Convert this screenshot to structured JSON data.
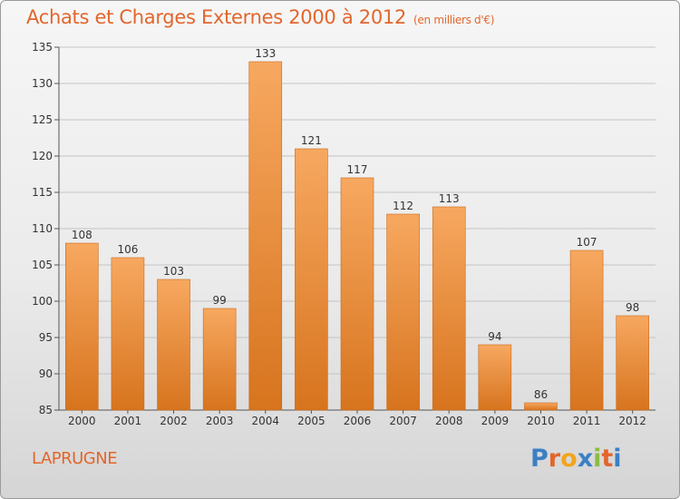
{
  "header": {
    "title": "Achats et Charges Externes 2000 à 2012",
    "unit": "(en milliers d'€)"
  },
  "footer": {
    "commune": "LAPRUGNE",
    "logo_letters": [
      "P",
      "r",
      "o",
      "x",
      "i",
      "t",
      "i"
    ],
    "logo_colors": [
      "#3b7fc4",
      "#e2662c",
      "#f2a51e",
      "#3b7fc4",
      "#8cbc3f",
      "#e2662c",
      "#3b7fc4"
    ]
  },
  "colors": {
    "accent": "#e2662c",
    "bar_top": "#f7a860",
    "bar_bottom": "#d7741e",
    "grid": "#c4c4c4"
  },
  "chart_data": {
    "type": "bar",
    "categories": [
      "2000",
      "2001",
      "2002",
      "2003",
      "2004",
      "2005",
      "2006",
      "2007",
      "2008",
      "2009",
      "2010",
      "2011",
      "2012"
    ],
    "values": [
      108,
      106,
      103,
      99,
      133,
      121,
      117,
      112,
      113,
      94,
      86,
      107,
      98
    ],
    "ylim": [
      85,
      135
    ],
    "yticks": [
      85,
      90,
      95,
      100,
      105,
      110,
      115,
      120,
      125,
      130,
      135
    ],
    "grid": true,
    "xlabel": "",
    "ylabel": ""
  }
}
